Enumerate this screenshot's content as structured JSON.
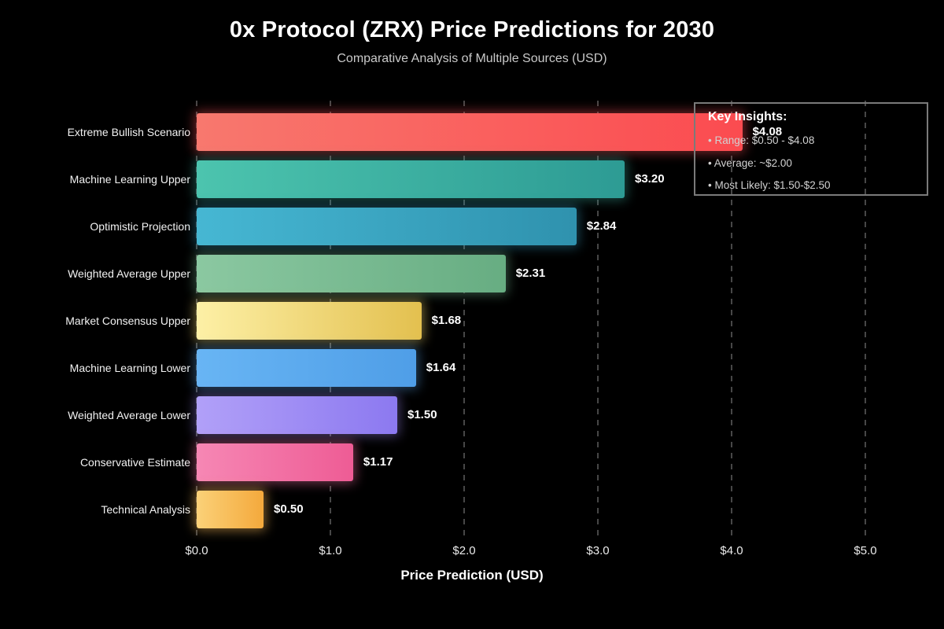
{
  "chart_data": {
    "type": "bar",
    "orientation": "horizontal",
    "title": "0x Protocol (ZRX) Price Predictions for 2030",
    "subtitle": "Comparative Analysis of Multiple Sources (USD)",
    "xlabel": "Price Prediction (USD)",
    "xlim": [
      0,
      5
    ],
    "x_tick_values": [
      0,
      1,
      2,
      3,
      4,
      5
    ],
    "x_tick_labels": [
      "$0.0",
      "$1.0",
      "$2.0",
      "$3.0",
      "$4.0",
      "$5.0"
    ],
    "grid": "vertical-dashed",
    "legend": "none",
    "categories": [
      "Extreme Bullish Scenario",
      "Machine Learning Upper",
      "Optimistic Projection",
      "Weighted Average Upper",
      "Market Consensus Upper",
      "Machine Learning Lower",
      "Weighted Average Lower",
      "Conservative Estimate",
      "Technical Analysis"
    ],
    "values": [
      4.08,
      3.2,
      2.84,
      2.31,
      1.68,
      1.64,
      1.5,
      1.17,
      0.5
    ],
    "value_labels": [
      "$4.08",
      "$3.20",
      "$2.84",
      "$2.31",
      "$1.68",
      "$1.64",
      "$1.50",
      "$1.17",
      "$0.50"
    ],
    "bar_gradients": [
      [
        "#f8786e",
        "#fb4b50"
      ],
      [
        "#4cc4ae",
        "#2d9b94"
      ],
      [
        "#46b7d3",
        "#2f92ae"
      ],
      [
        "#8bc8a1",
        "#67ad82"
      ],
      [
        "#fdf0a6",
        "#e3c04f"
      ],
      [
        "#68b5f4",
        "#4f9ee7"
      ],
      [
        "#b1a0f8",
        "#8c79f0"
      ],
      [
        "#f687b4",
        "#ee5c95"
      ],
      [
        "#fbd178",
        "#f4a93c"
      ]
    ],
    "bar_glow_colors": [
      "rgba(250,80,85,0.45)",
      "rgba(62,180,165,0.40)",
      "rgba(58,160,195,0.40)",
      "rgba(120,190,150,0.40)",
      "rgba(242,215,110,0.45)",
      "rgba(95,170,240,0.40)",
      "rgba(160,140,245,0.40)",
      "rgba(240,110,160,0.45)",
      "rgba(248,185,90,0.50)"
    ]
  },
  "insights_box": {
    "title": "Key Insights:",
    "items": [
      "• Range: $0.50 - $4.08",
      "• Average: ~$2.00",
      "• Most Likely: $1.50-$2.50"
    ]
  },
  "colors": {
    "background": "#000000",
    "text_primary": "#ffffff",
    "text_secondary": "#c9c9c9",
    "grid": "#474747",
    "insights_border": "#7a7a7a"
  }
}
